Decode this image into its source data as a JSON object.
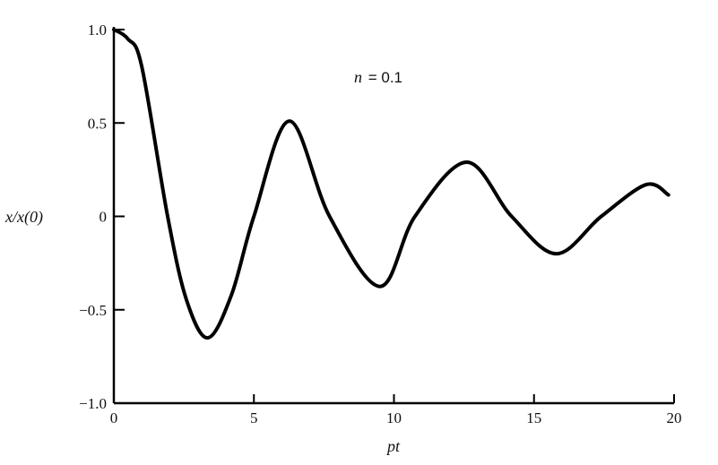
{
  "chart_data": {
    "type": "line",
    "title": "",
    "xlabel": "pt",
    "ylabel": "x/x(0)",
    "annotation": {
      "var": "n",
      "text": " = 0.1"
    },
    "xlim": [
      0,
      20
    ],
    "ylim": [
      -1.0,
      1.0
    ],
    "xticks": [
      "0",
      "5",
      "10",
      "15",
      "20"
    ],
    "yticks": [
      "1.0",
      "0.5",
      "0",
      "−0.5",
      "−1.0"
    ],
    "grid": false,
    "line_color": "#000000",
    "series": [
      {
        "x": [
          0,
          0.5,
          1.0,
          1.92,
          2.6,
          3.36,
          4.2,
          5.0,
          6.27,
          7.7,
          9.5,
          10.75,
          12.6,
          14.2,
          15.8,
          17.4,
          19.0,
          19.8
        ],
        "y": [
          1.0,
          0.95,
          0.8,
          0.0,
          -0.45,
          -0.65,
          -0.42,
          0.0,
          0.51,
          0.0,
          -0.375,
          0.0,
          0.29,
          0.0,
          -0.2,
          0.0,
          0.17,
          0.115
        ]
      }
    ]
  }
}
